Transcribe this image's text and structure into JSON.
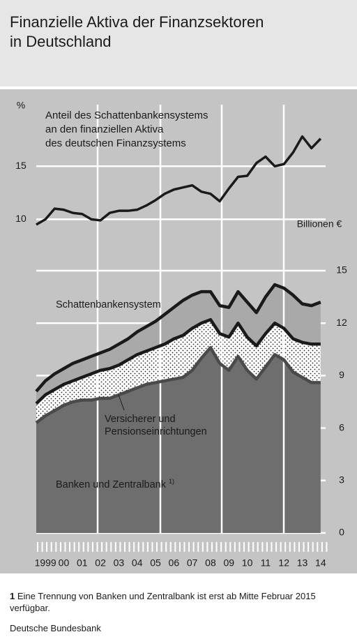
{
  "header": {
    "title": [
      "Finanzielle Aktiva der Finanzsektoren",
      "in Deutschland"
    ]
  },
  "chart_data": [
    {
      "type": "line",
      "ylabel": "%",
      "annotation": [
        "Anteil des Schattenbankensystems",
        "an den finanziellen Aktiva",
        "des deutschen Finanzsystems"
      ],
      "x": [
        1999,
        1999.5,
        2000,
        2000.5,
        2001,
        2001.5,
        2002,
        2002.5,
        2003,
        2003.5,
        2004,
        2004.5,
        2005,
        2005.5,
        2006,
        2006.5,
        2007,
        2007.5,
        2008,
        2008.5,
        2009,
        2009.5,
        2010,
        2010.5,
        2011,
        2011.5,
        2012,
        2012.5,
        2013,
        2013.5,
        2014,
        2014.5
      ],
      "values": [
        9.5,
        10.0,
        11.0,
        10.9,
        10.6,
        10.5,
        10.0,
        9.9,
        10.6,
        10.8,
        10.8,
        10.9,
        11.3,
        11.8,
        12.4,
        12.8,
        13.0,
        13.2,
        12.6,
        12.4,
        11.7,
        12.9,
        14.0,
        14.1,
        15.3,
        15.9,
        15.0,
        15.2,
        16.3,
        17.8,
        16.7,
        17.6
      ],
      "color": "#1a1a1a",
      "xlim": [
        1999,
        2015
      ],
      "ylim": [
        7,
        21
      ],
      "yticks": [
        10,
        15
      ],
      "grid": true
    },
    {
      "type": "stacked_area",
      "ylabel": "Billionen €",
      "note_marker": "1)",
      "x": [
        1999,
        1999.5,
        2000,
        2000.5,
        2001,
        2001.5,
        2002,
        2002.5,
        2003,
        2003.5,
        2004,
        2004.5,
        2005,
        2005.5,
        2006,
        2006.5,
        2007,
        2007.5,
        2008,
        2008.5,
        2009,
        2009.5,
        2010,
        2010.5,
        2011,
        2011.5,
        2012,
        2012.5,
        2013,
        2013.5,
        2014,
        2014.5
      ],
      "series": [
        {
          "name": "Banken und Zentralbank",
          "color": "#6e6e6e",
          "line_color": "#4a4a4a",
          "values": [
            6.3,
            6.7,
            7.0,
            7.3,
            7.5,
            7.6,
            7.6,
            7.7,
            7.7,
            7.9,
            8.1,
            8.3,
            8.5,
            8.6,
            8.7,
            8.8,
            8.9,
            9.3,
            10.0,
            10.6,
            9.7,
            9.3,
            10.1,
            9.3,
            8.8,
            9.5,
            10.2,
            9.9,
            9.2,
            8.9,
            8.6,
            8.6
          ]
        },
        {
          "name": "Versicherer und Pensionseinrichtungen",
          "color": "#ffffff",
          "line_color": "#1a1a1a",
          "values": [
            1.1,
            1.2,
            1.2,
            1.2,
            1.2,
            1.3,
            1.5,
            1.6,
            1.7,
            1.7,
            1.8,
            1.9,
            1.9,
            2.0,
            2.1,
            2.3,
            2.4,
            2.4,
            2.0,
            1.6,
            1.7,
            1.9,
            1.9,
            1.9,
            1.9,
            1.9,
            1.8,
            1.8,
            1.9,
            2.0,
            2.2,
            2.2
          ]
        },
        {
          "name": "Schattenbankensystem",
          "color": "#a9a9a9",
          "line_color": "#1a1a1a",
          "values": [
            0.7,
            0.8,
            0.9,
            0.9,
            1.0,
            1.0,
            1.0,
            1.0,
            1.1,
            1.2,
            1.2,
            1.3,
            1.4,
            1.5,
            1.7,
            1.8,
            2.0,
            1.9,
            1.8,
            1.6,
            1.6,
            1.7,
            1.8,
            2.0,
            1.9,
            2.1,
            2.2,
            2.3,
            2.5,
            2.2,
            2.2,
            2.4
          ]
        }
      ],
      "xlim": [
        1999,
        2015
      ],
      "ylim": [
        0,
        15
      ],
      "yticks": [
        0,
        3,
        6,
        9,
        12,
        15
      ],
      "grid": true,
      "xticks": [
        {
          "value": 1999,
          "label": "1999"
        },
        {
          "value": 2000,
          "label": "00"
        },
        {
          "value": 2001,
          "label": "01"
        },
        {
          "value": 2002,
          "label": "02"
        },
        {
          "value": 2003,
          "label": "03"
        },
        {
          "value": 2004,
          "label": "04"
        },
        {
          "value": 2005,
          "label": "05"
        },
        {
          "value": 2006,
          "label": "06"
        },
        {
          "value": 2007,
          "label": "07"
        },
        {
          "value": 2008,
          "label": "08"
        },
        {
          "value": 2009,
          "label": "09"
        },
        {
          "value": 2010,
          "label": "10"
        },
        {
          "value": 2011,
          "label": "11"
        },
        {
          "value": 2012,
          "label": "12"
        },
        {
          "value": 2013,
          "label": "13"
        },
        {
          "value": 2014,
          "label": "14"
        }
      ]
    }
  ],
  "footnote": {
    "marker": "1",
    "text": "Eine Trennung von Banken und Zentralbank ist erst ab Mitte Februar 2015 verfügbar."
  },
  "source": "Deutsche Bundesbank"
}
